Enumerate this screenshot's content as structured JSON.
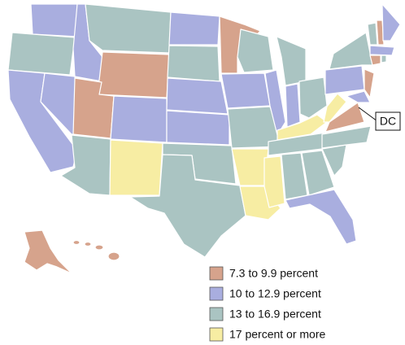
{
  "map": {
    "callout": "DC",
    "legend": [
      {
        "label": "7.3 to 9.9 percent",
        "color": "#d6a38c"
      },
      {
        "label": "10 to 12.9 percent",
        "color": "#a9aedf"
      },
      {
        "label": "13 to 16.9 percent",
        "color": "#aac4c2"
      },
      {
        "label": "17 percent or more",
        "color": "#f7eda3"
      }
    ]
  }
}
